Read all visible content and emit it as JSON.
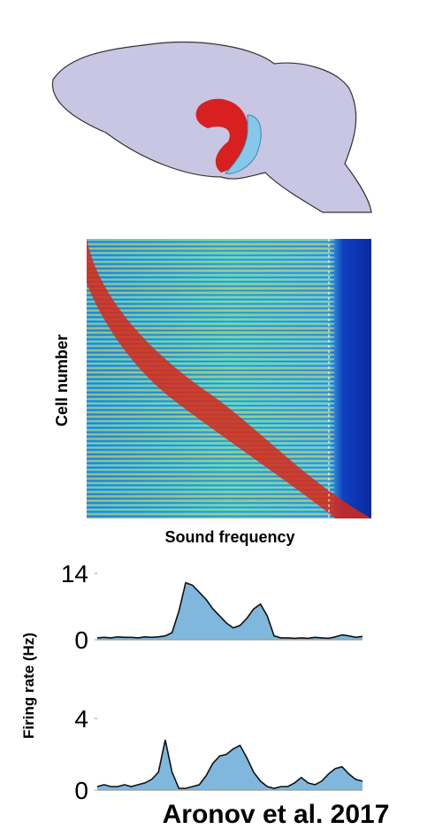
{
  "heatmap": {
    "x_label": "Sound frequency",
    "y_label": "Cell number"
  },
  "chart_data": [
    {
      "type": "area",
      "ylabel": "Firing rate (Hz)",
      "color": "#7fb8dc",
      "values": [
        0.4,
        0.5,
        0.4,
        0.6,
        0.5,
        0.5,
        0.4,
        0.6,
        0.5,
        0.6,
        0.8,
        1.5,
        6,
        12,
        11.5,
        10,
        8.5,
        6.5,
        5,
        3.5,
        2.5,
        3,
        4.5,
        6.5,
        7.5,
        5,
        0.8,
        0.4,
        0.4,
        0.3,
        0.4,
        0.3,
        0.5,
        0.4,
        0.3,
        0.6,
        1.0,
        0.8,
        0.5,
        0.7
      ],
      "ylim": [
        0,
        14
      ],
      "yticks": [
        0,
        14
      ]
    },
    {
      "type": "area",
      "color": "#7fb8dc",
      "values": [
        0.2,
        0.3,
        0.2,
        0.2,
        0.3,
        0.2,
        0.3,
        0.4,
        0.6,
        1.0,
        2.8,
        1.0,
        0.1,
        0.1,
        0.2,
        0.3,
        0.8,
        1.5,
        1.9,
        2.0,
        2.3,
        2.5,
        1.8,
        1.0,
        0.5,
        0.2,
        0.1,
        0.2,
        0.2,
        0.4,
        0.7,
        0.4,
        0.3,
        0.5,
        0.9,
        1.2,
        1.3,
        0.9,
        0.6,
        0.5
      ],
      "ylim": [
        0,
        4
      ],
      "yticks": [
        0,
        4
      ]
    }
  ],
  "citation": "Aronov et al. 2017"
}
